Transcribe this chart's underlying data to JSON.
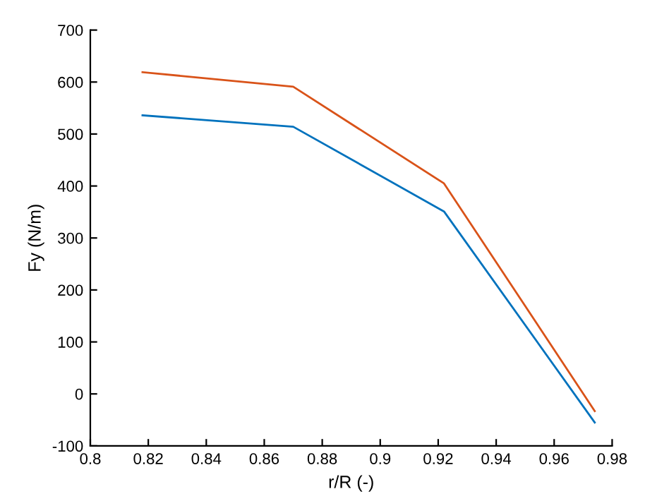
{
  "chart_data": {
    "type": "line",
    "xlabel": "r/R (-)",
    "ylabel": "Fy (N/m)",
    "x": [
      0.818,
      0.87,
      0.922,
      0.974
    ],
    "series": [
      {
        "color": "#0072bd",
        "values": [
          536,
          514,
          351,
          -55
        ]
      },
      {
        "color": "#d95319",
        "values": [
          619,
          591,
          405,
          -33
        ]
      }
    ],
    "xlim": [
      0.8,
      0.98
    ],
    "xticks": [
      0.8,
      0.82,
      0.84,
      0.86,
      0.88,
      0.9,
      0.92,
      0.94,
      0.96,
      0.98
    ],
    "ylim": [
      -100,
      700
    ],
    "yticks": [
      -100,
      0,
      100,
      200,
      300,
      400,
      500,
      600,
      700
    ],
    "grid": false,
    "marker": "none",
    "line_style": "solid"
  }
}
